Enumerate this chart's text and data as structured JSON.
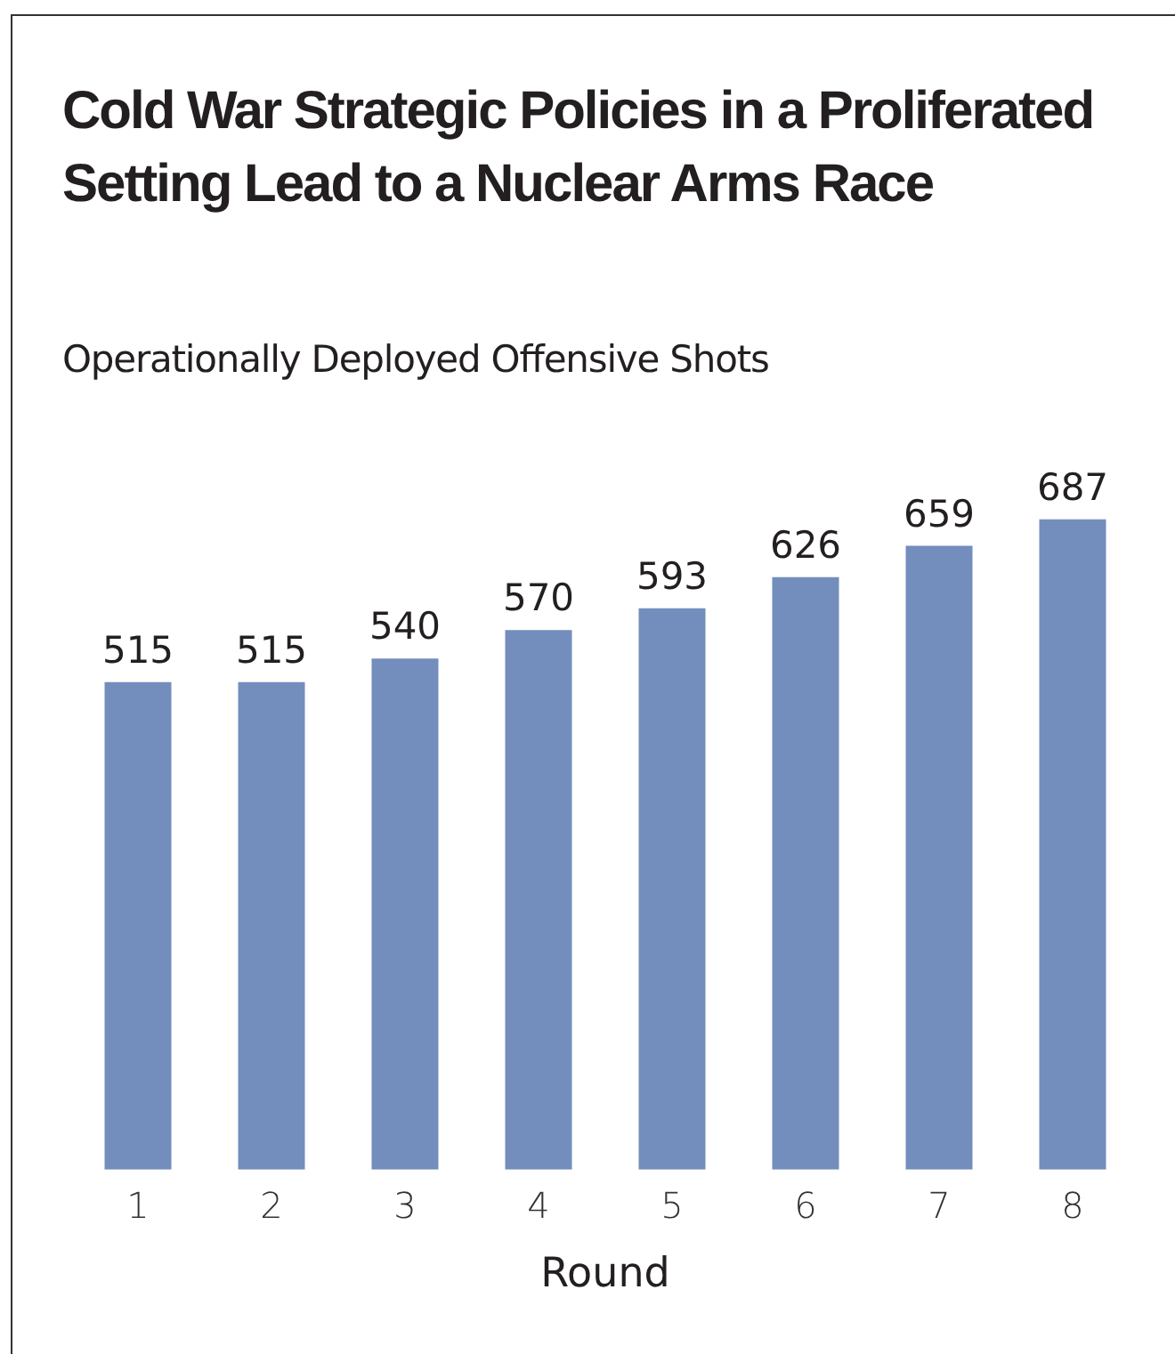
{
  "chart_data": {
    "type": "bar",
    "title": "Cold War Strategic Policies in a Proliferated Setting Lead to a Nuclear Arms Race",
    "subtitle": "Operationally Deployed Offensive Shots",
    "xlabel": "Round",
    "categories": [
      "1",
      "2",
      "3",
      "4",
      "5",
      "6",
      "7",
      "8"
    ],
    "values": [
      515,
      515,
      540,
      570,
      593,
      626,
      659,
      687
    ],
    "color": "#738dbd",
    "data_labels": true,
    "tick_labels": "x",
    "grid": false,
    "legend": false
  }
}
